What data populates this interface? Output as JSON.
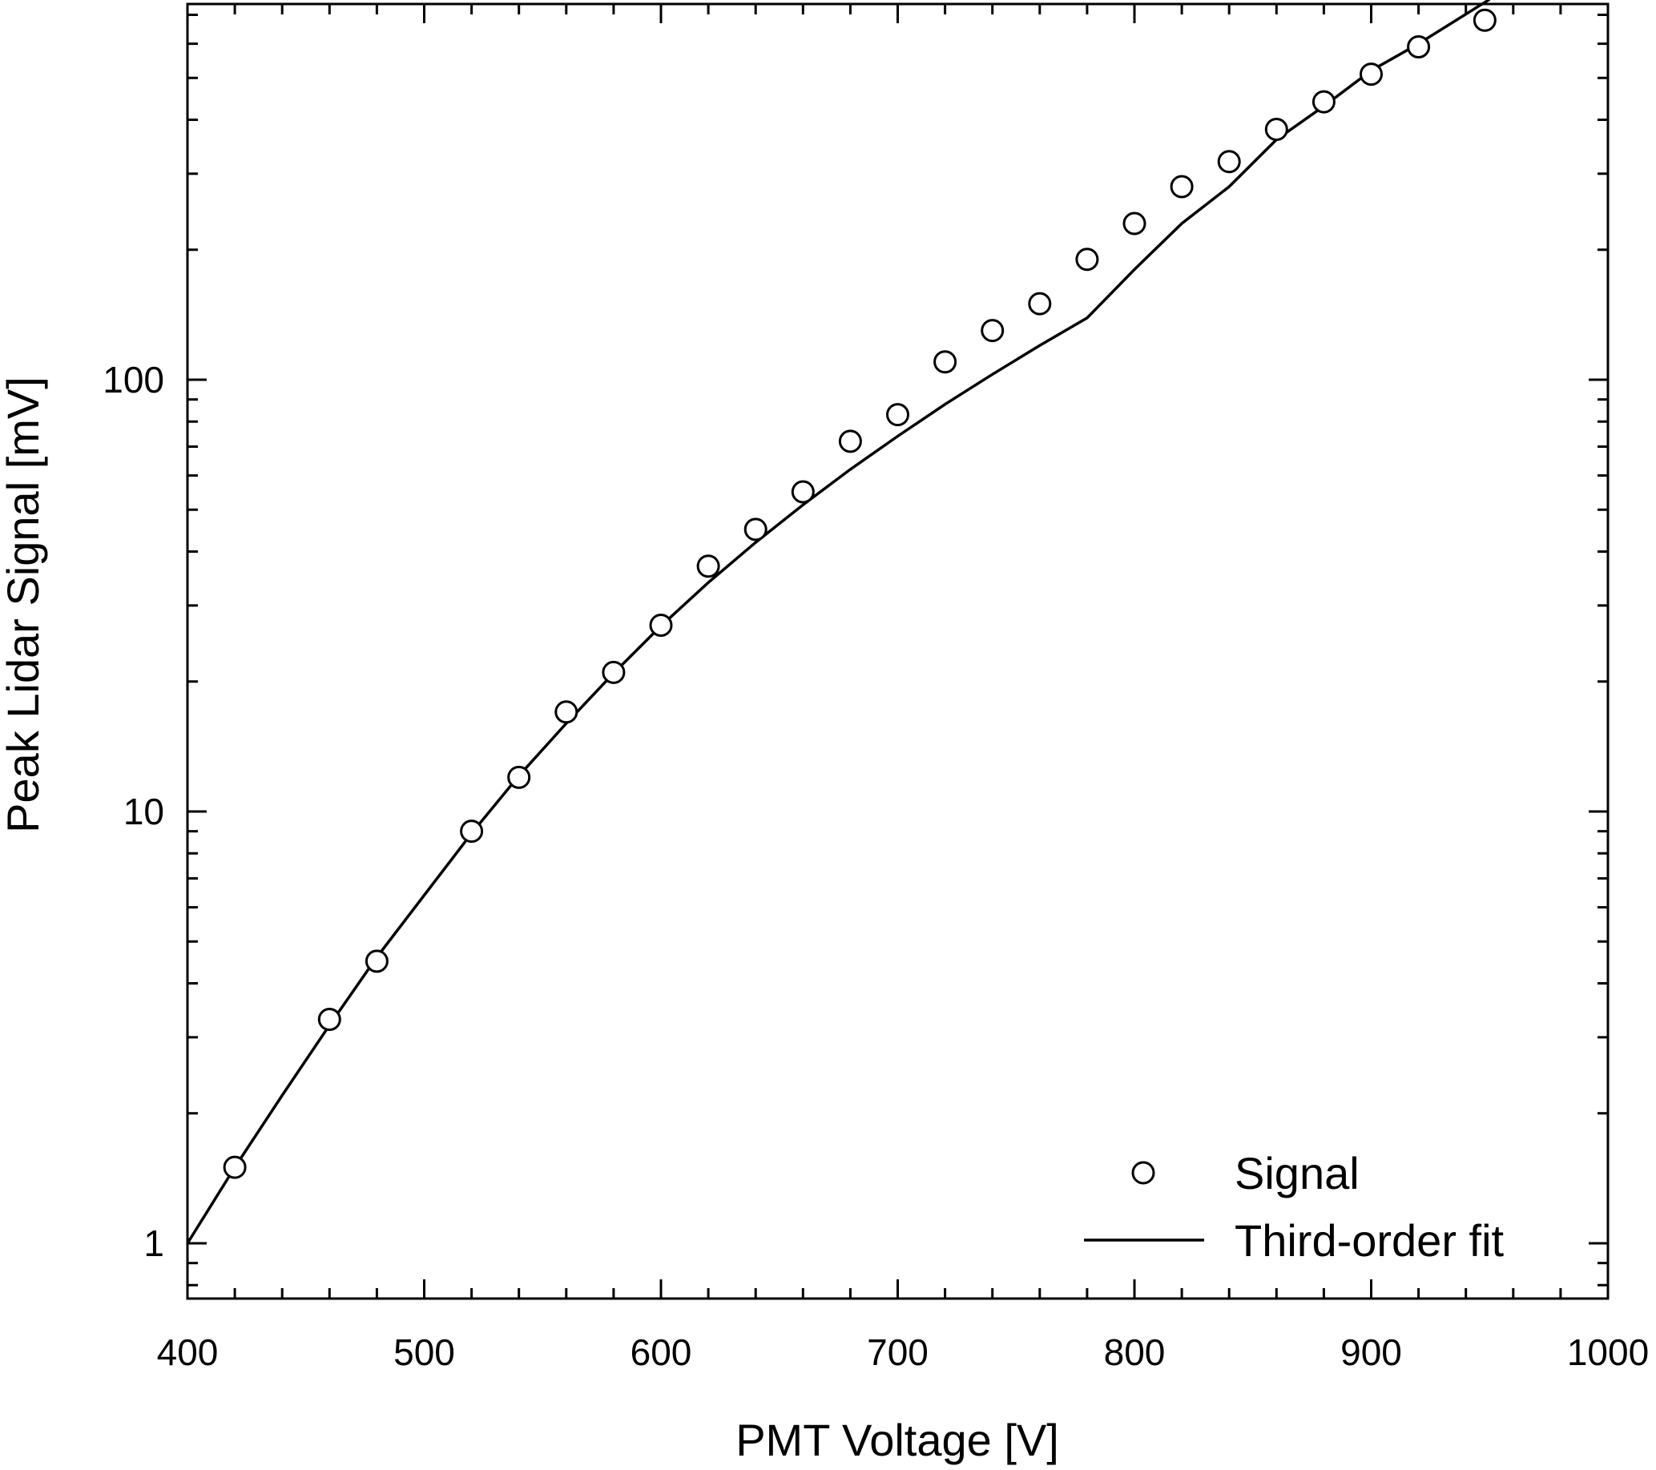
{
  "chart_data": {
    "type": "scatter",
    "title": "",
    "xlabel": "PMT Voltage [V]",
    "ylabel": "Peak Lidar Signal [mV]",
    "xlim": [
      400,
      1000
    ],
    "ylim": [
      0.8,
      850
    ],
    "yscale": "log",
    "x_ticks": [
      400,
      500,
      600,
      700,
      800,
      900,
      1000
    ],
    "x_tick_labels": [
      "400",
      "500",
      "600",
      "700",
      "800",
      "900",
      "1000"
    ],
    "y_ticks": [
      1,
      10,
      100
    ],
    "y_tick_labels": [
      "1",
      "10",
      "100"
    ],
    "grid": false,
    "legend_position": "bottom-right",
    "series": [
      {
        "name": "Signal",
        "kind": "markers",
        "marker": "open-circle",
        "x": [
          420,
          460,
          480,
          520,
          540,
          560,
          580,
          600,
          620,
          640,
          660,
          680,
          700,
          720,
          740,
          760,
          780,
          800,
          820,
          840,
          860,
          880,
          900,
          920,
          948
        ],
        "y": [
          1.5,
          3.3,
          4.5,
          9.0,
          12.0,
          17.0,
          21.0,
          27.0,
          37.0,
          45.0,
          55.0,
          72.0,
          83.0,
          110.0,
          130.0,
          150.0,
          190.0,
          230.0,
          280.0,
          320.0,
          380.0,
          440.0,
          510.0,
          590.0,
          680.0
        ]
      },
      {
        "name": "Third-order fit",
        "kind": "line",
        "x": [
          400,
          420,
          440,
          460,
          480,
          500,
          520,
          540,
          560,
          580,
          600,
          620,
          640,
          660,
          680,
          700,
          720,
          740,
          760,
          780,
          800,
          820,
          840,
          860,
          880,
          900,
          920,
          950
        ],
        "y": [
          1.0,
          1.5,
          2.2,
          3.2,
          4.6,
          6.4,
          8.9,
          12.1,
          16.0,
          20.9,
          26.9,
          33.9,
          42.0,
          51.3,
          62.0,
          74.0,
          87.7,
          102.9,
          120.0,
          139.0,
          180.0,
          230.0,
          280.0,
          360.0,
          430.0,
          520.0,
          600.0,
          760.0
        ]
      }
    ]
  }
}
